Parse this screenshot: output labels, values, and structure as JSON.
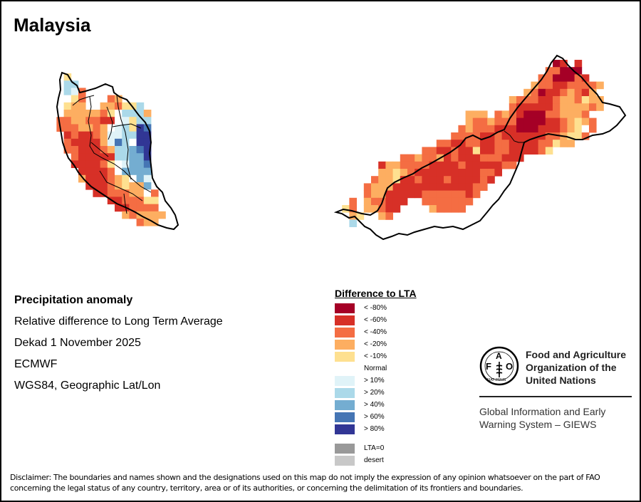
{
  "title": "Malaysia",
  "info": {
    "heading": "Precipitation anomaly",
    "subtitle": "Relative difference to Long Term Average",
    "period": "Dekad 1 November 2025",
    "source": "ECMWF",
    "projection": "WGS84, Geographic Lat/Lon"
  },
  "legend": {
    "title": "Difference to LTA",
    "classes": [
      {
        "code": "A",
        "label": "< -80%",
        "color": "#a50026"
      },
      {
        "code": "B",
        "label": "< -60%",
        "color": "#d73027"
      },
      {
        "code": "C",
        "label": "< -40%",
        "color": "#f46d43"
      },
      {
        "code": "D",
        "label": "< -20%",
        "color": "#fdae61"
      },
      {
        "code": "E",
        "label": "< -10%",
        "color": "#fee090"
      },
      {
        "code": "N",
        "label": "Normal",
        "color": null
      },
      {
        "code": "F",
        "label": "> 10%",
        "color": "#e0f3f8"
      },
      {
        "code": "G",
        "label": "> 20%",
        "color": "#abd9e9"
      },
      {
        "code": "H",
        "label": "> 40%",
        "color": "#74add1"
      },
      {
        "code": "I",
        "label": "> 60%",
        "color": "#4575b4"
      },
      {
        "code": "J",
        "label": "> 80%",
        "color": "#313695"
      }
    ],
    "extra": [
      {
        "label": "LTA=0",
        "color": "#999999"
      },
      {
        "label": "desert",
        "color": "#c8c8c8"
      }
    ]
  },
  "map": {
    "peninsular_grid": [
      "........E...........",
      "........GG..........",
      "........GFC.........",
      "........NEC...CD....",
      "........EDD..DDCEEG.",
      "........DDDDDCENGGGD",
      ".......CCDDCCBBNFEGG",
      ".......CCCDDCDNFGEJI",
      "........BCBBCDFFGGJJ",
      "........CBBBBDFIGNJJ",
      "........CCBBBCDGGHIJ",
      ".........CBBBBBGGHHJ",
      ".........BBBBCENFHHI",
      "..........BBBBCNHHHH",
      "..........DBBBCDENHF",
      "...........BBBCDEDDH",
      "............BBCCCDDNC",
      "..............BBCCCEE",
      "...............BBCCCC",
      "................DCDDDD",
      "..................CDD."
    ],
    "borneo_grid": [
      "..............................AB.B...",
      ".............................CCAAA...",
      "............................CCAAACB..",
      "...........................DCCBBCCCCD",
      "..........................DCABBCDCBD.",
      "........................DCCCBBCDDCEDD",
      "........................CBBBBBCDDDDCD",
      "..................DDD.CDCBAAACCDDDC..",
      "..................DCCDCCCAAAABBCDEDC.",
      ".................CDCCCBBBAAABBBCDENC.",
      "................CCCCBBCBBBBBBCCDEEC..",
      "..............CCBBCCBBCCBBBBCCEDD....",
      "............CCBBCBBEBBCCBBBBCE.......",
      ".........CCDCCDBCBBBCCCBBB...........",
      "......BDDCCCCBBBBCBBBBBCC............",
      "......DDEDCBBBBBBBBBCCB..............",
      ".....CDDEBBCBBBCBBBBCB...............",
      "....CDDDBBBBBBBBBBBCC................",
      "....CDDBBBBBCCCCCCBC.................",
      "..C.DCCBBB..CCCCCCC..................",
      ".EC.DDCBB....DCCCC...................",
      "..DE..DC.............................",
      "..G.................................."
    ]
  },
  "fao": {
    "logo_letters": "FAO",
    "logo_motto": "FIAT PANIS",
    "name_lines": [
      "Food and Agriculture",
      "Organization of the",
      "United Nations"
    ],
    "giews_lines": [
      "Global Information and Early",
      "Warning System – GIEWS"
    ]
  },
  "disclaimer": "Disclaimer: The boundaries and names shown and the designations used on this map do not imply the expression of any opinion whatsoever on the part of FAO concerning the legal status of any country, territory, area or of its authorities, or concerning the delimitation of its frontiers and boundaries."
}
